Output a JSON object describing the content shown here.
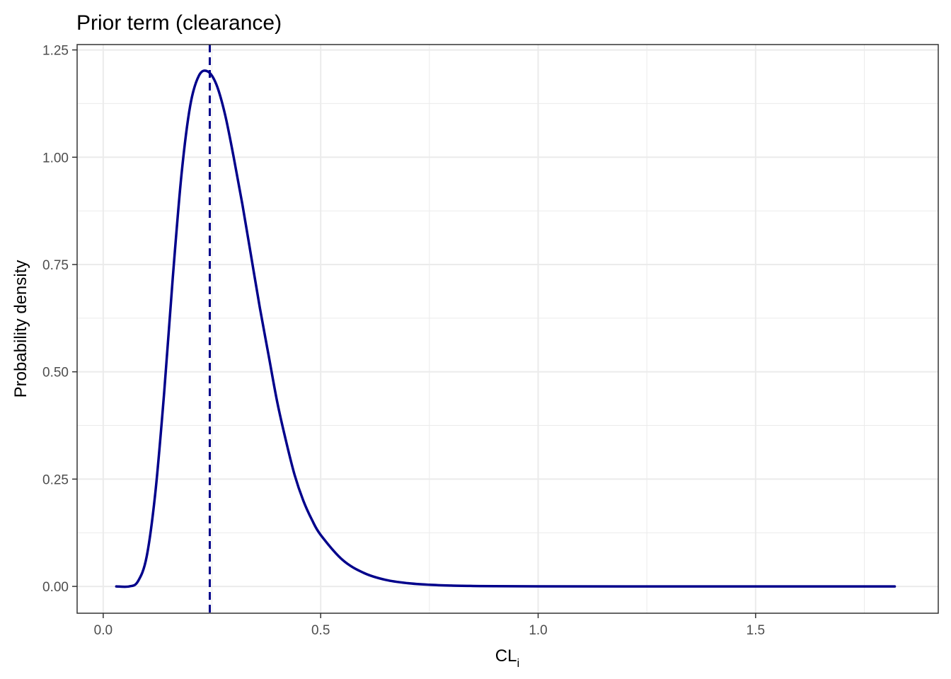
{
  "chart_data": {
    "type": "line",
    "title": "Prior term (clearance)",
    "xlabel": "CL",
    "xlabel_subscript": "i",
    "ylabel": "Probability density",
    "xlim": [
      -0.06,
      1.92
    ],
    "ylim": [
      -0.0625,
      1.2625
    ],
    "x_ticks": [
      0.0,
      0.5,
      1.0,
      1.5
    ],
    "x_tick_labels": [
      "0.0",
      "0.5",
      "1.0",
      "1.5"
    ],
    "y_ticks": [
      0.0,
      0.25,
      0.5,
      0.75,
      1.0,
      1.25
    ],
    "y_tick_labels": [
      "0.00",
      "0.25",
      "0.50",
      "0.75",
      "1.00",
      "1.25"
    ],
    "grid": true,
    "vline": {
      "x": 0.245,
      "style": "dashed",
      "color": "#00008b"
    },
    "series": [
      {
        "color": "#00008b",
        "x": [
          0.03,
          0.06,
          0.08,
          0.1,
          0.12,
          0.14,
          0.16,
          0.18,
          0.2,
          0.22,
          0.24,
          0.26,
          0.28,
          0.3,
          0.32,
          0.34,
          0.36,
          0.38,
          0.4,
          0.42,
          0.44,
          0.46,
          0.48,
          0.5,
          0.55,
          0.6,
          0.65,
          0.7,
          0.75,
          0.8,
          0.85,
          0.9,
          1.0,
          1.2,
          1.5,
          1.82
        ],
        "y": [
          0.0,
          0.0,
          0.012,
          0.07,
          0.22,
          0.45,
          0.72,
          0.96,
          1.12,
          1.19,
          1.2,
          1.17,
          1.1,
          1.0,
          0.89,
          0.77,
          0.65,
          0.54,
          0.43,
          0.34,
          0.26,
          0.2,
          0.155,
          0.12,
          0.062,
          0.031,
          0.015,
          0.0075,
          0.0038,
          0.0019,
          0.001,
          0.0005,
          0.0001,
          0.0,
          0.0,
          0.0
        ]
      }
    ]
  },
  "colors": {
    "line": "#00008b",
    "grid": "#ebebeb",
    "panel_border": "#333333"
  }
}
